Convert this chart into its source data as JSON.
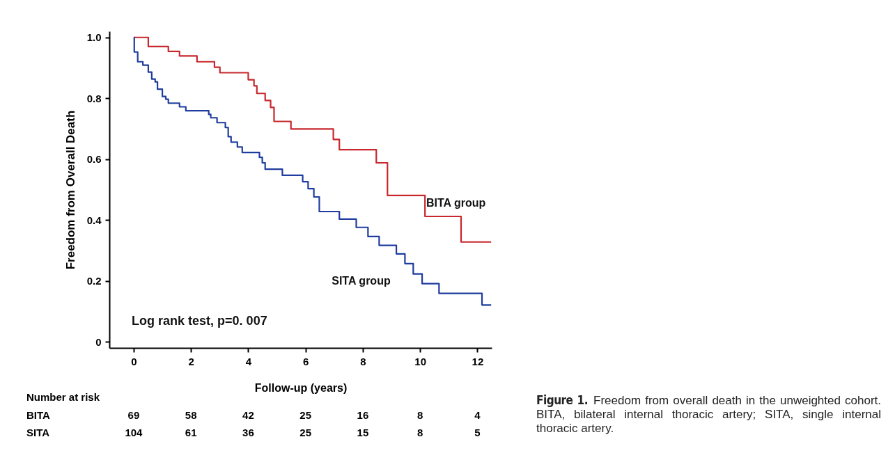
{
  "chart_data": {
    "type": "step",
    "xlabel": "Follow-up (years)",
    "ylabel": "Freedom from Overall Death",
    "xlim": [
      -0.85,
      12.5
    ],
    "ylim": [
      -0.02,
      1.02
    ],
    "xticks": [
      0,
      2,
      4,
      6,
      8,
      10,
      12
    ],
    "yticks": [
      {
        "value": 0,
        "label": "0"
      },
      {
        "value": 0.2,
        "label": "0.2"
      },
      {
        "value": 0.4,
        "label": "0.4"
      },
      {
        "value": 0.6,
        "label": "0.6"
      },
      {
        "value": 0.8,
        "label": "0.8"
      },
      {
        "value": 1,
        "label": "1.0"
      }
    ],
    "grid": false,
    "legend": false,
    "line_style": "solid",
    "marker": "none",
    "series": [
      {
        "name": "BITA group",
        "color": "#c8282d",
        "x": [
          0,
          0.51,
          1.21,
          1.6,
          2.21,
          2.82,
          3.01,
          4.0,
          4.2,
          4.3,
          4.59,
          4.78,
          4.9,
          5.49,
          6.97,
          7.18,
          8.47,
          8.86,
          10.17,
          11.43,
          12.48
        ],
        "values": [
          1.0,
          0.97,
          0.954,
          0.939,
          0.92,
          0.902,
          0.884,
          0.861,
          0.841,
          0.816,
          0.793,
          0.77,
          0.724,
          0.699,
          0.665,
          0.631,
          0.588,
          0.481,
          0.412,
          0.328,
          0.328
        ]
      },
      {
        "name": "SITA group",
        "color": "#1f3d9e",
        "x": [
          0,
          0.02,
          0.14,
          0.32,
          0.51,
          0.63,
          0.75,
          0.83,
          1.0,
          1.12,
          1.21,
          1.6,
          1.82,
          2.62,
          2.69,
          2.91,
          3.2,
          3.3,
          3.4,
          3.62,
          3.79,
          4.39,
          4.49,
          4.59,
          5.19,
          5.9,
          6.09,
          6.29,
          6.48,
          7.18,
          7.77,
          8.18,
          8.57,
          9.17,
          9.47,
          9.76,
          10.07,
          10.66,
          12.16,
          12.48
        ],
        "values": [
          1.0,
          0.952,
          0.92,
          0.909,
          0.886,
          0.863,
          0.854,
          0.83,
          0.806,
          0.797,
          0.784,
          0.772,
          0.759,
          0.747,
          0.736,
          0.72,
          0.704,
          0.674,
          0.656,
          0.64,
          0.622,
          0.606,
          0.588,
          0.567,
          0.547,
          0.526,
          0.503,
          0.476,
          0.428,
          0.403,
          0.376,
          0.346,
          0.317,
          0.289,
          0.257,
          0.223,
          0.191,
          0.159,
          0.121,
          0.121
        ]
      }
    ],
    "annotations": [
      "Log rank test, p=0. 007",
      "Number at risk",
      "BITA",
      "69",
      "58",
      "42",
      "25",
      "16",
      "8",
      "4",
      "SITA",
      "104",
      "61",
      "36",
      "25",
      "15",
      "8",
      "5",
      "Figure 1.",
      "Freedom from overall death in the unweighted cohort. BITA, bilateral internal thoracic artery; SITA, single internal thoracic artery."
    ]
  }
}
